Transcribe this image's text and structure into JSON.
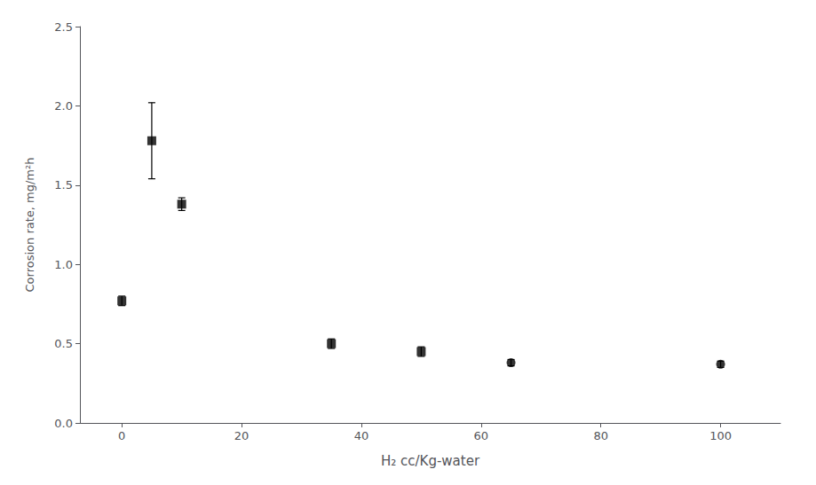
{
  "chart_data": {
    "type": "scatter",
    "xlabel": "H₂ cc/Kg-water",
    "ylabel": "Corrosion rate, mg/m²h",
    "xlim": [
      -7,
      110
    ],
    "ylim": [
      0.0,
      2.5
    ],
    "xticks": [
      0,
      20,
      40,
      60,
      80,
      100
    ],
    "yticks": [
      {
        "value": 0.0,
        "label": "0.0"
      },
      0.5,
      {
        "value": 1.0,
        "label": "1.0"
      },
      1.5,
      {
        "value": 2.0,
        "label": "2.0"
      },
      2.5
    ],
    "grid": false,
    "series": [
      {
        "marker": "square",
        "color": "#000000",
        "x": [
          0,
          5,
          10,
          35,
          50
        ],
        "values": [
          0.77,
          1.78,
          1.38,
          0.5,
          0.45
        ],
        "yerr": [
          0.03,
          0.24,
          0.04,
          0.03,
          0.03
        ]
      },
      {
        "marker": "circle",
        "color": "#000000",
        "x": [
          65,
          100
        ],
        "values": [
          0.38,
          0.37
        ],
        "yerr": [
          0.02,
          0.02
        ]
      }
    ]
  }
}
